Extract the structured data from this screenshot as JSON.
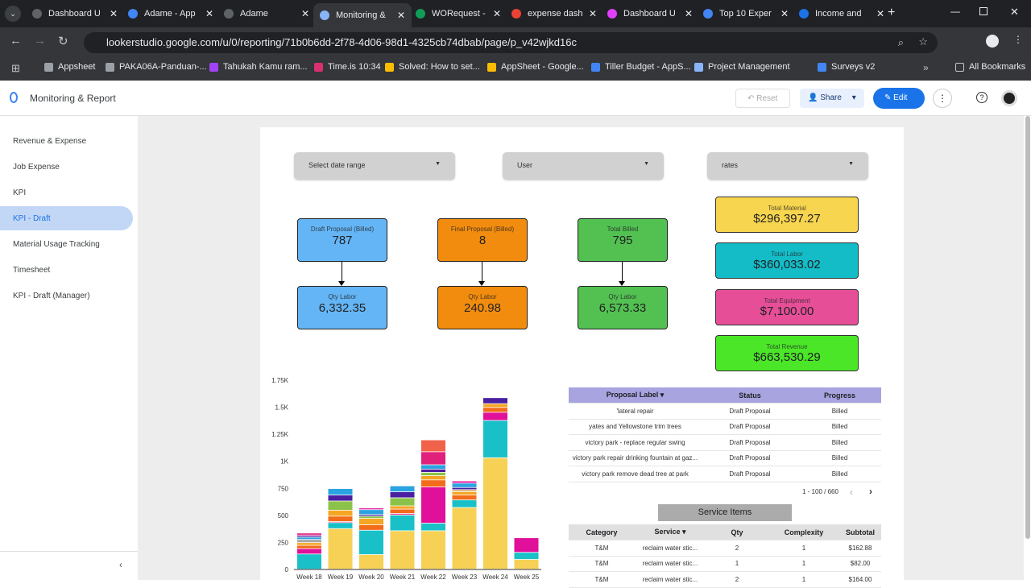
{
  "browser": {
    "tabs": [
      {
        "title": "Dashboard U",
        "color": "#5f6368"
      },
      {
        "title": "Adame - App",
        "color": "#4285f4"
      },
      {
        "title": "Adame",
        "color": "#5f6368"
      },
      {
        "title": "Monitoring &",
        "color": "#8ab4f8",
        "active": true
      },
      {
        "title": "WORequest -",
        "color": "#0f9d58"
      },
      {
        "title": "expense dash",
        "color": "#ea4335"
      },
      {
        "title": "Dashboard U",
        "color": "#e040fb"
      },
      {
        "title": "Top 10 Exper",
        "color": "#4285f4"
      },
      {
        "title": "Income and",
        "color": "#1a73e8"
      }
    ],
    "url": "lookerstudio.google.com/u/0/reporting/71b0b6dd-2f78-4d06-98d1-4325cb74dbab/page/p_v42wjkd16c",
    "bookmarks": [
      {
        "label": "Appsheet",
        "color": "#9aa0a6"
      },
      {
        "label": "PAKA06A-Panduan-...",
        "color": "#9aa0a6"
      },
      {
        "label": "Tahukah Kamu ram...",
        "color": "#a142f4"
      },
      {
        "label": "Time.is 10:34",
        "color": "#d93071"
      },
      {
        "label": "Solved: How to set...",
        "color": "#fbbc04"
      },
      {
        "label": "AppSheet - Google...",
        "color": "#fbbc04"
      },
      {
        "label": "Tiller Budget - AppS...",
        "color": "#4285f4"
      },
      {
        "label": "Project Management",
        "color": "#8ab4f8"
      },
      {
        "label": "Surveys v2",
        "color": "#4285f4"
      }
    ],
    "all_bookmarks": "All Bookmarks"
  },
  "app": {
    "title": "Monitoring & Report",
    "reset": "Reset",
    "share": "Share",
    "edit": "Edit"
  },
  "sidebar": {
    "items": [
      {
        "label": "Revenue & Expense"
      },
      {
        "label": "Job Expense"
      },
      {
        "label": "KPI"
      },
      {
        "label": "KPI - Draft",
        "selected": true
      },
      {
        "label": "Material Usage Tracking"
      },
      {
        "label": "Timesheet"
      },
      {
        "label": "KPI - Draft (Manager)"
      }
    ]
  },
  "filters": {
    "date": "Select date range",
    "user": "User",
    "rates": "rates"
  },
  "kpis": [
    {
      "top_label": "Draft Proposal (Billed)",
      "top_value": "787",
      "bottom_label": "Qty Labor",
      "bottom_value": "6,332.35",
      "color": "#64b5f6"
    },
    {
      "top_label": "Final Proposal (Billed)",
      "top_value": "8",
      "bottom_label": "Qty Labor",
      "bottom_value": "240.98",
      "color": "#f28c0f"
    },
    {
      "top_label": "Total Billed",
      "top_value": "795",
      "bottom_label": "Qty Labor",
      "bottom_value": "6,573.33",
      "color": "#52c152"
    }
  ],
  "totals": [
    {
      "label": "Total Material",
      "value": "$296,397.27",
      "color": "#f8d54f"
    },
    {
      "label": "Total Labor",
      "value": "$360,033.02",
      "color": "#14bcc8"
    },
    {
      "label": "Total Equipment",
      "value": "$7,100.00",
      "color": "#e64f98"
    },
    {
      "label": "Total Revenue",
      "value": "$663,530.29",
      "color": "#4be628"
    }
  ],
  "chart_data": {
    "type": "bar",
    "stacked": true,
    "categories": [
      "Week 18",
      "Week 19",
      "Week 20",
      "Week 21",
      "Week 22",
      "Week 23",
      "Week 24",
      "Week 25"
    ],
    "ylim": [
      0,
      1750
    ],
    "yticks": [
      "0",
      "250",
      "500",
      "750",
      "1K",
      "1.25K",
      "1.5K",
      "1.75K"
    ],
    "stacks": [
      [
        [
          140,
          "#19c0c7"
        ],
        [
          50,
          "#e0109a"
        ],
        [
          30,
          "#f26c1a"
        ],
        [
          25,
          "#f5a623"
        ],
        [
          30,
          "#aaaaaa"
        ],
        [
          20,
          "#2aa3e0"
        ],
        [
          15,
          "#4a1fa1"
        ],
        [
          25,
          "#e84393"
        ]
      ],
      [
        [
          375,
          "#f6d155"
        ],
        [
          55,
          "#19c0c7"
        ],
        [
          10,
          "#e84393"
        ],
        [
          50,
          "#f26c1a"
        ],
        [
          55,
          "#f5a623"
        ],
        [
          85,
          "#8bc34a"
        ],
        [
          55,
          "#4a1fa1"
        ],
        [
          60,
          "#2aa3e0"
        ]
      ],
      [
        [
          135,
          "#f6d155"
        ],
        [
          225,
          "#19c0c7"
        ],
        [
          50,
          "#f26c1a"
        ],
        [
          60,
          "#f5a623"
        ],
        [
          20,
          "#8bc34a"
        ],
        [
          15,
          "#4a1fa1"
        ],
        [
          45,
          "#2aa3e0"
        ],
        [
          15,
          "#e0109a"
        ]
      ],
      [
        [
          355,
          "#f6d155"
        ],
        [
          145,
          "#19c0c7"
        ],
        [
          15,
          "#e84393"
        ],
        [
          40,
          "#f26c1a"
        ],
        [
          30,
          "#f5a623"
        ],
        [
          75,
          "#8bc34a"
        ],
        [
          55,
          "#4a1fa1"
        ],
        [
          55,
          "#2aa3e0"
        ]
      ],
      [
        [
          355,
          "#f6d155"
        ],
        [
          70,
          "#19c0c7"
        ],
        [
          335,
          "#e0109a"
        ],
        [
          65,
          "#f26c1a"
        ],
        [
          40,
          "#f5a623"
        ],
        [
          30,
          "#8bc34a"
        ],
        [
          30,
          "#4a1fa1"
        ],
        [
          40,
          "#2aa3e0"
        ],
        [
          120,
          "#e0207a"
        ],
        [
          110,
          "#f1624a"
        ]
      ],
      [
        [
          570,
          "#f6d155"
        ],
        [
          70,
          "#19c0c7"
        ],
        [
          45,
          "#f26c1a"
        ],
        [
          30,
          "#f5a623"
        ],
        [
          20,
          "#d9b36a"
        ],
        [
          20,
          "#4a1fa1"
        ],
        [
          40,
          "#2aa3e0"
        ],
        [
          20,
          "#e0109a"
        ]
      ],
      [
        [
          1030,
          "#f6d155"
        ],
        [
          345,
          "#19c0c7"
        ],
        [
          75,
          "#e0109a"
        ],
        [
          45,
          "#f26c1a"
        ],
        [
          35,
          "#f5a623"
        ],
        [
          55,
          "#4a1fa1"
        ]
      ],
      [
        [
          90,
          "#f6d155"
        ],
        [
          65,
          "#19c0c7"
        ],
        [
          135,
          "#e0109a"
        ]
      ]
    ]
  },
  "proposals": {
    "headers": [
      "Proposal Label ▾",
      "Status",
      "Progress"
    ],
    "rows": [
      [
        "'lateral repair",
        "Draft Proposal",
        "Billed"
      ],
      [
        "yates and Yellowstone trim trees",
        "Draft Proposal",
        "Billed"
      ],
      [
        "victory park - replace regular swing",
        "Draft Proposal",
        "Billed"
      ],
      [
        "victory park repair drinking fountain at gaz...",
        "Draft Proposal",
        "Billed"
      ],
      [
        "victory park remove dead tree at park",
        "Draft Proposal",
        "Billed"
      ]
    ],
    "pagination": "1 - 100 / 660"
  },
  "services": {
    "title": "Service Items",
    "headers": [
      "Category",
      "Service ▾",
      "Qty",
      "Complexity",
      "Subtotal"
    ],
    "rows": [
      [
        "T&M",
        "reclaim water stic...",
        "2",
        "1",
        "$162.88"
      ],
      [
        "T&M",
        "reclaim water stic...",
        "1",
        "1",
        "$82.00"
      ],
      [
        "T&M",
        "reclaim water stic...",
        "2",
        "1",
        "$164.00"
      ]
    ]
  }
}
